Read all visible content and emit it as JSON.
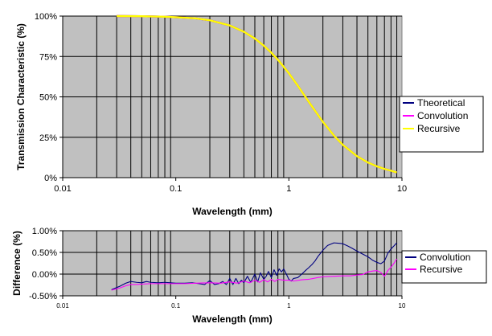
{
  "chart_data": [
    {
      "type": "line",
      "xlabel": "Wavelength (mm)",
      "ylabel": "Transmission Characteristic (%)",
      "x_scale": "log",
      "xlim": [
        0.01,
        10
      ],
      "ylim": [
        0,
        100
      ],
      "x_ticks": [
        {
          "value": 0.01,
          "label": "0.01"
        },
        {
          "value": 0.1,
          "label": "0.1"
        },
        {
          "value": 1,
          "label": "1"
        },
        {
          "value": 10,
          "label": "10"
        }
      ],
      "y_ticks": [
        {
          "value": 0,
          "label": "0%"
        },
        {
          "value": 25,
          "label": "25%"
        },
        {
          "value": 50,
          "label": "50%"
        },
        {
          "value": 75,
          "label": "75%"
        },
        {
          "value": 100,
          "label": "100%"
        }
      ],
      "grid": {
        "x_minor": true,
        "y_major": true
      },
      "background": "#c0c0c0",
      "legend": {
        "position": "right"
      },
      "series": [
        {
          "name": "Theoretical",
          "color": "#000080",
          "x": [
            0.03,
            0.05,
            0.08,
            0.1,
            0.15,
            0.2,
            0.3,
            0.4,
            0.5,
            0.6,
            0.7,
            0.8,
            1.0,
            1.2,
            1.5,
            2.0,
            2.5,
            3.0,
            4.0,
            5.0,
            6.0,
            7.0,
            8.0,
            9.0
          ],
          "y": [
            100,
            99.9,
            99.6,
            99.3,
            98.6,
            97.4,
            94.2,
            90.3,
            86.1,
            81.7,
            77.3,
            73.0,
            64.6,
            56.9,
            46.9,
            34.5,
            26.1,
            20.3,
            13.3,
            9.4,
            7.0,
            5.4,
            4.3,
            3.2
          ]
        },
        {
          "name": "Convolution",
          "color": "#ff00ff",
          "x": [
            0.03,
            0.05,
            0.08,
            0.1,
            0.15,
            0.2,
            0.3,
            0.4,
            0.5,
            0.6,
            0.7,
            0.8,
            1.0,
            1.2,
            1.5,
            2.0,
            2.5,
            3.0,
            4.0,
            5.0,
            6.0,
            7.0,
            8.0,
            9.0
          ],
          "y": [
            100,
            99.9,
            99.6,
            99.3,
            98.6,
            97.4,
            94.2,
            90.3,
            86.1,
            81.7,
            77.3,
            73.0,
            64.6,
            56.9,
            46.9,
            34.5,
            26.1,
            20.3,
            13.3,
            9.4,
            7.0,
            5.4,
            4.3,
            3.2
          ]
        },
        {
          "name": "Recursive",
          "color": "#ffff00",
          "x": [
            0.03,
            0.05,
            0.08,
            0.1,
            0.15,
            0.2,
            0.3,
            0.4,
            0.5,
            0.6,
            0.7,
            0.8,
            1.0,
            1.2,
            1.5,
            2.0,
            2.5,
            3.0,
            4.0,
            5.0,
            6.0,
            7.0,
            8.0,
            9.0
          ],
          "y": [
            100,
            99.9,
            99.6,
            99.3,
            98.6,
            97.4,
            94.2,
            90.3,
            86.1,
            81.7,
            77.3,
            73.0,
            64.6,
            56.9,
            46.9,
            34.5,
            26.1,
            20.3,
            13.3,
            9.4,
            7.0,
            5.4,
            4.3,
            3.2
          ]
        }
      ]
    },
    {
      "type": "line",
      "xlabel": "Wavelength (mm)",
      "ylabel": "Difference (%)",
      "x_scale": "log",
      "xlim": [
        0.01,
        10
      ],
      "ylim": [
        -0.5,
        1.0
      ],
      "x_ticks": [
        {
          "value": 0.01,
          "label": "0.01"
        },
        {
          "value": 0.1,
          "label": "0.1"
        },
        {
          "value": 1,
          "label": "1"
        },
        {
          "value": 10,
          "label": "10"
        }
      ],
      "y_ticks": [
        {
          "value": -0.5,
          "label": "-0.50%"
        },
        {
          "value": 0.0,
          "label": "0.00%"
        },
        {
          "value": 0.5,
          "label": "0.50%"
        },
        {
          "value": 1.0,
          "label": "1.00%"
        }
      ],
      "grid": {
        "x_minor": true,
        "y_major": true
      },
      "background": "#c0c0c0",
      "legend": {
        "position": "right"
      },
      "series": [
        {
          "name": "Convolution",
          "color": "#000080",
          "x": [
            0.027,
            0.032,
            0.036,
            0.04,
            0.045,
            0.05,
            0.055,
            0.06,
            0.07,
            0.08,
            0.09,
            0.1,
            0.12,
            0.14,
            0.16,
            0.18,
            0.2,
            0.22,
            0.24,
            0.26,
            0.28,
            0.3,
            0.32,
            0.34,
            0.36,
            0.38,
            0.4,
            0.43,
            0.46,
            0.5,
            0.53,
            0.56,
            0.6,
            0.63,
            0.66,
            0.7,
            0.74,
            0.78,
            0.82,
            0.86,
            0.9,
            0.95,
            1.0,
            1.05,
            1.1,
            1.2,
            1.3,
            1.4,
            1.5,
            1.6,
            1.7,
            1.8,
            2.0,
            2.2,
            2.5,
            2.8,
            3.0,
            3.3,
            3.6,
            4.0,
            4.5,
            5.0,
            5.5,
            6.0,
            6.5,
            7.0,
            7.5,
            8.0,
            8.5,
            9.0
          ],
          "y": [
            -0.36,
            -0.28,
            -0.21,
            -0.17,
            -0.19,
            -0.2,
            -0.17,
            -0.19,
            -0.2,
            -0.19,
            -0.2,
            -0.21,
            -0.21,
            -0.2,
            -0.22,
            -0.24,
            -0.15,
            -0.24,
            -0.22,
            -0.17,
            -0.24,
            -0.1,
            -0.24,
            -0.1,
            -0.22,
            -0.14,
            -0.2,
            -0.05,
            -0.19,
            -0.0,
            -0.18,
            0.03,
            -0.12,
            -0.05,
            0.06,
            -0.08,
            0.1,
            -0.03,
            0.12,
            0.05,
            0.12,
            0.0,
            -0.12,
            -0.16,
            -0.1,
            -0.08,
            0.0,
            0.08,
            0.15,
            0.22,
            0.3,
            0.4,
            0.55,
            0.66,
            0.72,
            0.71,
            0.7,
            0.65,
            0.6,
            0.53,
            0.46,
            0.4,
            0.32,
            0.27,
            0.24,
            0.3,
            0.48,
            0.58,
            0.65,
            0.72
          ]
        },
        {
          "name": "Recursive",
          "color": "#ff00ff",
          "x": [
            0.027,
            0.032,
            0.036,
            0.04,
            0.045,
            0.05,
            0.06,
            0.07,
            0.08,
            0.1,
            0.12,
            0.15,
            0.2,
            0.25,
            0.3,
            0.35,
            0.4,
            0.45,
            0.5,
            0.55,
            0.6,
            0.65,
            0.7,
            0.75,
            0.8,
            0.9,
            1.0,
            1.1,
            1.3,
            1.5,
            1.8,
            2.0,
            2.5,
            3.0,
            3.5,
            4.0,
            4.5,
            5.0,
            5.5,
            6.0,
            6.5,
            7.0,
            7.5,
            8.0,
            8.5,
            9.0
          ],
          "y": [
            -0.37,
            -0.32,
            -0.27,
            -0.24,
            -0.24,
            -0.23,
            -0.22,
            -0.22,
            -0.22,
            -0.22,
            -0.22,
            -0.21,
            -0.2,
            -0.21,
            -0.18,
            -0.21,
            -0.16,
            -0.2,
            -0.14,
            -0.19,
            -0.13,
            -0.18,
            -0.12,
            -0.17,
            -0.12,
            -0.14,
            -0.14,
            -0.16,
            -0.13,
            -0.12,
            -0.08,
            -0.06,
            -0.05,
            -0.04,
            -0.04,
            -0.02,
            -0.01,
            0.05,
            0.07,
            0.08,
            0.04,
            -0.05,
            0.08,
            0.16,
            0.25,
            0.35
          ]
        }
      ]
    }
  ]
}
